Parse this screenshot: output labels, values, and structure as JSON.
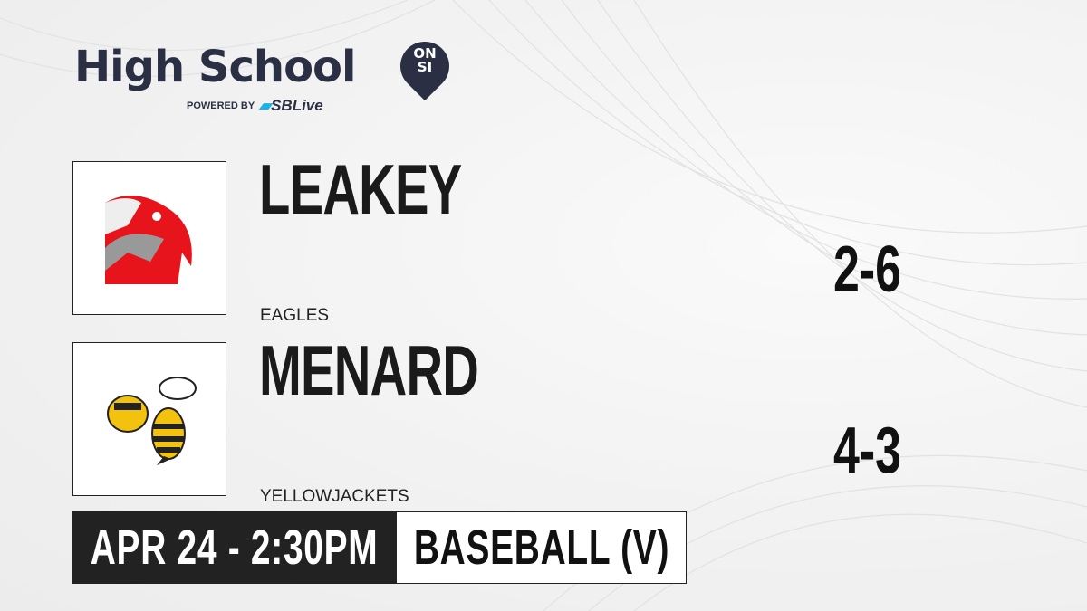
{
  "brand": {
    "title": "High School",
    "badge_top": "ON",
    "badge_bottom": "SI",
    "powered_by": "POWERED BY",
    "partner": "SBLive"
  },
  "teams": [
    {
      "name": "LEAKEY",
      "mascot": "EAGLES",
      "record": "2-6",
      "logo_icon": "eagle-logo-icon"
    },
    {
      "name": "MENARD",
      "mascot": "YELLOWJACKETS",
      "record": "4-3",
      "logo_icon": "yellowjacket-logo-icon"
    }
  ],
  "game": {
    "datetime": "APR 24 - 2:30PM",
    "sport": "BASEBALL (V)"
  },
  "colors": {
    "brand": "#2b2f44",
    "partner_accent": "#1ab2e8",
    "eagle_red": "#e8141b",
    "jacket_yellow": "#f2c20f"
  }
}
